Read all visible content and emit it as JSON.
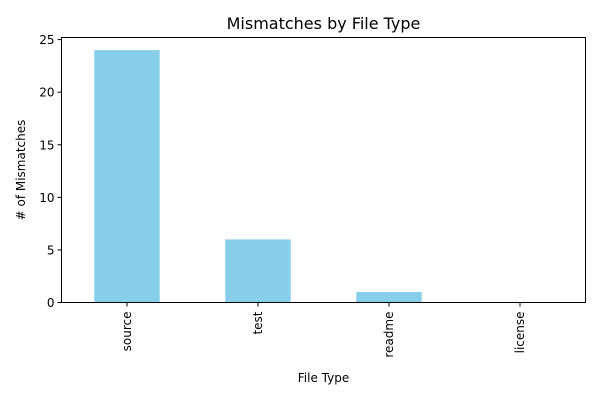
{
  "chart_data": {
    "type": "bar",
    "title": "Mismatches by File Type",
    "xlabel": "File Type",
    "ylabel": "# of Mismatches",
    "categories": [
      "source",
      "test",
      "readme",
      "license"
    ],
    "values": [
      24,
      6,
      1,
      0
    ],
    "ylim": [
      0,
      25.2
    ],
    "yticks": [
      0,
      5,
      10,
      15,
      20,
      25
    ],
    "bar_color": "#87CEEB",
    "grid": false,
    "legend": "none",
    "xtick_rotation": "vertical"
  }
}
